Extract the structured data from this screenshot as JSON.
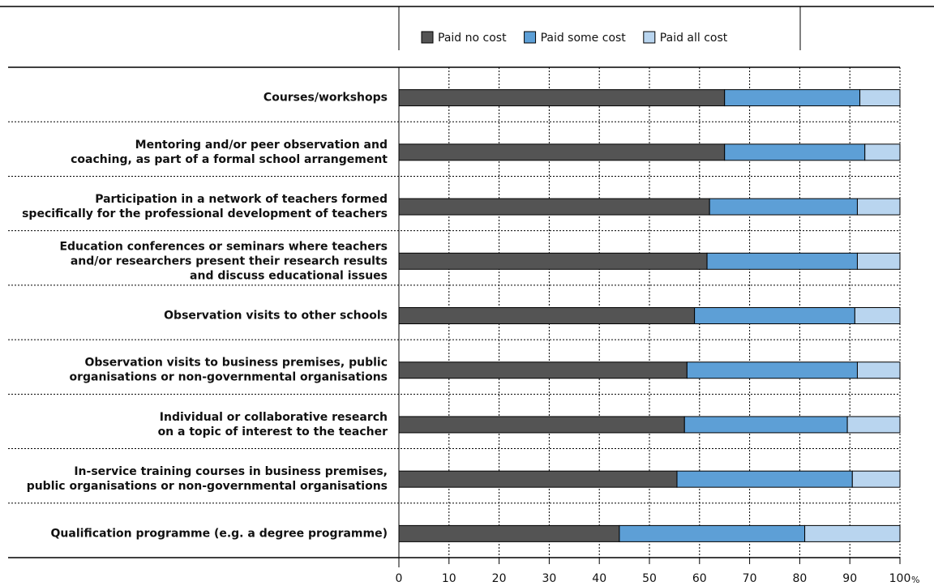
{
  "chart_data": {
    "type": "stacked_barh",
    "categories": [
      "Courses/workshops",
      "Mentoring and/or peer observation and\ncoaching, as part of a formal school arrangement",
      "Participation in a network of teachers formed\nspecifically for the professional development of teachers",
      "Education conferences or seminars where teachers\nand/or researchers present their research results\nand discuss educational issues",
      "Observation visits to other schools",
      "Observation visits to business premises, public\norganisations or non-governmental organisations",
      "Individual or collaborative research\non a topic of interest to the teacher",
      "In-service training courses in business premises,\npublic organisations or non-governmental organisations",
      "Qualification programme (e.g. a degree programme)"
    ],
    "series": [
      {
        "name": "Paid no cost",
        "color": "#545454",
        "values": [
          65,
          65,
          62,
          61.5,
          59,
          57.5,
          57,
          55.5,
          44
        ]
      },
      {
        "name": "Paid some cost",
        "color": "#5d9fd6",
        "values": [
          27,
          28,
          29.5,
          30,
          32,
          34,
          32.5,
          35,
          37
        ]
      },
      {
        "name": "Paid all cost",
        "color": "#b9d5ef",
        "values": [
          8,
          7,
          8.5,
          8.5,
          9,
          8.5,
          10.5,
          9.5,
          19
        ]
      }
    ],
    "xlim": [
      0,
      100
    ],
    "xticks": [
      0,
      10,
      20,
      30,
      40,
      50,
      60,
      70,
      80,
      90,
      100
    ],
    "x_label": "%",
    "grid": true,
    "legend": "top"
  }
}
